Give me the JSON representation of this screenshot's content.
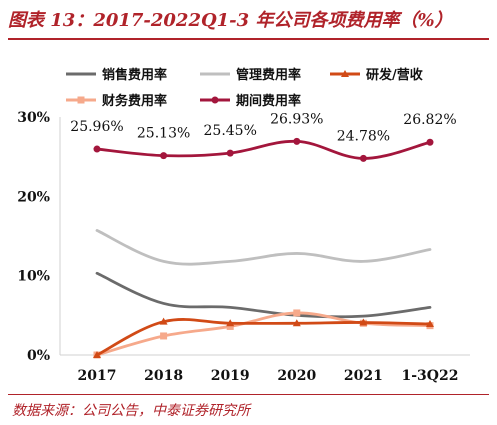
{
  "header": {
    "title": "图表 13：2017-2022Q1-3 年公司各项费用率（%）"
  },
  "footer": {
    "source": "数据来源：公司公告，中泰证券研究所"
  },
  "chart_data": {
    "type": "line",
    "categories": [
      "2017",
      "2018",
      "2019",
      "2020",
      "2021",
      "1-3Q22"
    ],
    "ylim": [
      0,
      30
    ],
    "yticks": [
      "0%",
      "10%",
      "20%",
      "30%"
    ],
    "grid": false,
    "legend_position": "top",
    "series": [
      {
        "name": "销售费用率",
        "color": "#6b6b6b",
        "marker": "none",
        "values": [
          10.3,
          6.5,
          6.0,
          5.0,
          4.9,
          6.0
        ]
      },
      {
        "name": "管理费用率",
        "color": "#bfbfbf",
        "marker": "none",
        "values": [
          15.7,
          11.8,
          11.8,
          12.8,
          11.8,
          13.3
        ]
      },
      {
        "name": "研发/营收",
        "color": "#d14a16",
        "marker": "triangle",
        "values": [
          0.0,
          4.2,
          4.0,
          4.0,
          4.1,
          3.9
        ]
      },
      {
        "name": "财务费用率",
        "color": "#f6a98b",
        "marker": "square",
        "values": [
          0.0,
          2.4,
          3.6,
          5.3,
          4.0,
          3.7
        ]
      },
      {
        "name": "期间费用率",
        "color": "#a3163c",
        "marker": "circle",
        "values": [
          25.96,
          25.13,
          25.45,
          26.93,
          24.78,
          26.82
        ]
      }
    ],
    "data_labels": [
      "25.96%",
      "25.13%",
      "25.45%",
      "26.93%",
      "24.78%",
      "26.82%"
    ]
  }
}
